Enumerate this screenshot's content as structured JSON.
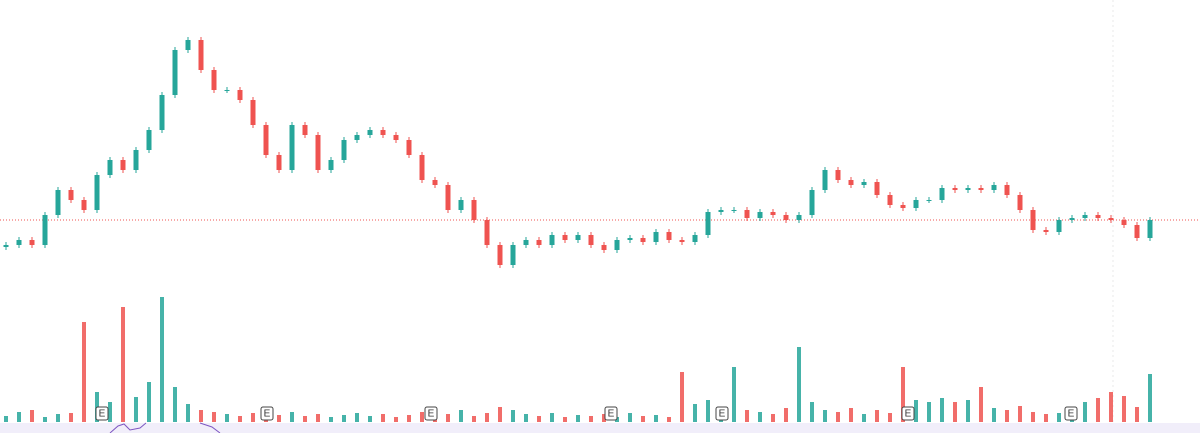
{
  "chart_data": {
    "type": "candlestick",
    "open": [
      43,
      45,
      50,
      45,
      75,
      100,
      90,
      80,
      115,
      130,
      120,
      140,
      160,
      195,
      240,
      250,
      220,
      200,
      200,
      190,
      165,
      135,
      120,
      165,
      155,
      120,
      130,
      150,
      155,
      160,
      155,
      150,
      135,
      110,
      105,
      80,
      90,
      70,
      45,
      25,
      45,
      50,
      45,
      55,
      50,
      55,
      45,
      40,
      50,
      52,
      48,
      58,
      50,
      48,
      55,
      78,
      80,
      80,
      72,
      78,
      75,
      70,
      75,
      100,
      120,
      110,
      105,
      108,
      95,
      85,
      82,
      90,
      90,
      102,
      100,
      102,
      100,
      105,
      95,
      80,
      60,
      58,
      70,
      72,
      75,
      72,
      70,
      65,
      52
    ],
    "high": [
      48,
      53,
      53,
      78,
      103,
      103,
      93,
      118,
      133,
      133,
      143,
      163,
      198,
      243,
      253,
      253,
      223,
      203,
      203,
      193,
      168,
      138,
      168,
      168,
      158,
      133,
      153,
      158,
      163,
      163,
      158,
      153,
      138,
      113,
      108,
      93,
      93,
      73,
      48,
      48,
      53,
      53,
      58,
      58,
      58,
      58,
      48,
      53,
      55,
      55,
      61,
      61,
      53,
      58,
      81,
      83,
      83,
      83,
      81,
      81,
      78,
      78,
      103,
      123,
      123,
      113,
      111,
      111,
      98,
      88,
      93,
      93,
      105,
      105,
      105,
      105,
      108,
      108,
      98,
      83,
      63,
      73,
      75,
      78,
      78,
      75,
      73,
      68,
      73
    ],
    "low": [
      40,
      42,
      42,
      42,
      72,
      87,
      77,
      77,
      112,
      117,
      117,
      137,
      157,
      192,
      237,
      217,
      197,
      197,
      187,
      162,
      132,
      117,
      117,
      152,
      117,
      117,
      127,
      147,
      152,
      152,
      147,
      132,
      107,
      102,
      77,
      77,
      67,
      42,
      22,
      22,
      42,
      42,
      42,
      47,
      47,
      42,
      37,
      37,
      47,
      45,
      45,
      47,
      45,
      45,
      52,
      75,
      77,
      69,
      69,
      72,
      67,
      67,
      72,
      97,
      107,
      102,
      102,
      92,
      82,
      79,
      79,
      87,
      87,
      97,
      97,
      97,
      97,
      92,
      77,
      57,
      55,
      55,
      67,
      69,
      69,
      67,
      62,
      49,
      49
    ],
    "close": [
      45,
      50,
      45,
      75,
      100,
      90,
      80,
      115,
      130,
      120,
      140,
      160,
      195,
      240,
      250,
      220,
      200,
      200,
      190,
      165,
      135,
      120,
      165,
      155,
      120,
      130,
      150,
      155,
      160,
      155,
      150,
      135,
      110,
      105,
      80,
      90,
      70,
      45,
      25,
      45,
      50,
      45,
      55,
      50,
      55,
      45,
      40,
      50,
      52,
      48,
      58,
      50,
      48,
      55,
      78,
      80,
      80,
      72,
      78,
      75,
      70,
      75,
      100,
      120,
      110,
      105,
      108,
      95,
      85,
      82,
      90,
      90,
      102,
      100,
      102,
      100,
      105,
      95,
      80,
      60,
      58,
      70,
      72,
      75,
      72,
      70,
      65,
      52,
      70
    ],
    "volume": [
      6,
      10,
      12,
      5,
      8,
      9,
      100,
      30,
      20,
      115,
      25,
      40,
      125,
      35,
      18,
      12,
      10,
      8,
      6,
      9,
      5,
      7,
      10,
      6,
      8,
      5,
      7,
      9,
      6,
      8,
      5,
      7,
      10,
      6,
      8,
      12,
      6,
      9,
      15,
      12,
      8,
      6,
      9,
      5,
      7,
      6,
      8,
      5,
      9,
      6,
      7,
      5,
      50,
      18,
      22,
      15,
      55,
      12,
      10,
      8,
      14,
      75,
      20,
      12,
      10,
      14,
      8,
      12,
      9,
      55,
      22,
      20,
      24,
      20,
      22,
      35,
      14,
      12,
      16,
      10,
      8,
      9,
      12,
      20,
      24,
      30,
      26,
      15,
      48
    ],
    "ylim": [
      0,
      290
    ],
    "volume_ylim": [
      0,
      125
    ],
    "up_color": "#26a69a",
    "down_color": "#ef5350",
    "last_price_line": true,
    "earnings_markers": [
      "E",
      "E",
      "E",
      "E",
      "E",
      "E",
      "E"
    ]
  }
}
